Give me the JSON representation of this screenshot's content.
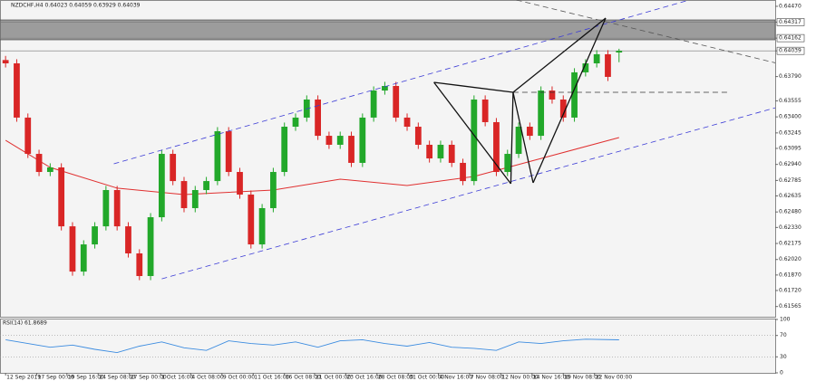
{
  "chart_data": {
    "type": "candlestick",
    "title": "NZDCHF,H4  0.64023 0.64059 0.63929 0.64039",
    "up_color": "#22a82a",
    "down_color": "#d92626",
    "xlim": [
      -0.5,
      69
    ],
    "ylim": [
      0.61466,
      0.64531
    ],
    "open": [
      0.6395,
      0.63918,
      0.63393,
      0.63042,
      0.62867,
      0.62911,
      0.62341,
      0.61903,
      0.62166,
      0.62341,
      0.62692,
      0.62341,
      0.62079,
      0.6186,
      0.62429,
      0.63042,
      0.62779,
      0.62517,
      0.62692,
      0.62779,
      0.63261,
      0.62867,
      0.62648,
      0.62166,
      0.62517,
      0.62867,
      0.63305,
      0.63393,
      0.63568,
      0.63217,
      0.6313,
      0.63217,
      0.62955,
      0.63393,
      0.63655,
      0.63699,
      0.63393,
      0.63305,
      0.6313,
      0.62998,
      0.6313,
      0.62955,
      0.62779,
      0.63568,
      0.63349,
      0.62867,
      0.63042,
      0.63305,
      0.63217,
      0.63655,
      0.63568,
      0.63393,
      0.63831,
      0.63918,
      0.64006,
      0.64023
    ],
    "high": [
      0.6399,
      0.63958,
      0.63433,
      0.63082,
      0.62951,
      0.62951,
      0.62381,
      0.62206,
      0.62381,
      0.62732,
      0.62732,
      0.62381,
      0.62119,
      0.62469,
      0.63082,
      0.63082,
      0.62819,
      0.62732,
      0.62819,
      0.63301,
      0.63301,
      0.62907,
      0.62688,
      0.62557,
      0.62907,
      0.63345,
      0.63433,
      0.63608,
      0.63608,
      0.63257,
      0.63257,
      0.63257,
      0.63433,
      0.63695,
      0.63739,
      0.63739,
      0.63433,
      0.63345,
      0.6317,
      0.6317,
      0.6317,
      0.62995,
      0.63608,
      0.63608,
      0.63389,
      0.63082,
      0.63345,
      0.63345,
      0.63695,
      0.63695,
      0.63608,
      0.63871,
      0.63958,
      0.64046,
      0.64046,
      0.64059
    ],
    "low": [
      0.63878,
      0.63353,
      0.63002,
      0.62827,
      0.62827,
      0.62301,
      0.61863,
      0.61863,
      0.62126,
      0.62301,
      0.62301,
      0.62039,
      0.6182,
      0.6182,
      0.62389,
      0.62739,
      0.62477,
      0.62477,
      0.62652,
      0.62739,
      0.62827,
      0.62608,
      0.62126,
      0.62126,
      0.62477,
      0.62827,
      0.63265,
      0.63353,
      0.63177,
      0.6309,
      0.6309,
      0.62915,
      0.62915,
      0.63353,
      0.63615,
      0.63353,
      0.63265,
      0.6309,
      0.62958,
      0.62958,
      0.62915,
      0.62739,
      0.62739,
      0.63309,
      0.62827,
      0.62827,
      0.63002,
      0.63177,
      0.63177,
      0.63528,
      0.63353,
      0.63353,
      0.63791,
      0.63878,
      0.63747,
      0.63929
    ],
    "close": [
      0.63918,
      0.63393,
      0.63042,
      0.62867,
      0.62911,
      0.62341,
      0.61903,
      0.62166,
      0.62341,
      0.62692,
      0.62341,
      0.62079,
      0.6186,
      0.62429,
      0.63042,
      0.62779,
      0.62517,
      0.62692,
      0.62779,
      0.63261,
      0.62867,
      0.62648,
      0.62166,
      0.62517,
      0.62867,
      0.63305,
      0.63393,
      0.63568,
      0.63217,
      0.6313,
      0.63217,
      0.62955,
      0.63393,
      0.63655,
      0.63699,
      0.63393,
      0.63305,
      0.6313,
      0.62998,
      0.6313,
      0.62955,
      0.62779,
      0.63568,
      0.63349,
      0.62867,
      0.63042,
      0.63305,
      0.63217,
      0.63655,
      0.63568,
      0.63393,
      0.63831,
      0.63918,
      0.64006,
      0.63787,
      0.64039
    ],
    "ma": {
      "color": "#e03030",
      "x": [
        0,
        4,
        10,
        16,
        24,
        30,
        36,
        42,
        48,
        55
      ],
      "values": [
        0.63173,
        0.62911,
        0.6271,
        0.62648,
        0.62692,
        0.62797,
        0.62736,
        0.62823,
        0.62998,
        0.632
      ]
    },
    "zone": {
      "color": "#8c8c8c",
      "range": [
        0.64146,
        0.64338
      ]
    },
    "lines": [
      {
        "color": "#3b3bd6",
        "dash": true,
        "x": [
          9.7,
          61.3
        ],
        "y": [
          0.62946,
          0.64531
        ]
      },
      {
        "color": "#3b3bd6",
        "dash": true,
        "x": [
          14.0,
          70.2
        ],
        "y": [
          0.61833,
          0.63524
        ]
      },
      {
        "color": "#555555",
        "dash": true,
        "x": [
          45.8,
          70.2
        ],
        "y": [
          0.64531,
          0.63892
        ]
      },
      {
        "color": "#333333",
        "dash": true,
        "x": [
          45.5,
          64.9
        ],
        "y": [
          0.63638,
          0.63638
        ]
      },
      {
        "color": "#111111",
        "dash": false,
        "x": [
          38.4,
          45.3
        ],
        "y": [
          0.63734,
          0.62753
        ]
      },
      {
        "color": "#111111",
        "dash": false,
        "x": [
          38.4,
          45.5
        ],
        "y": [
          0.63734,
          0.63638
        ]
      },
      {
        "color": "#111111",
        "dash": false,
        "x": [
          45.3,
          45.5
        ],
        "y": [
          0.62753,
          0.63638
        ]
      },
      {
        "color": "#111111",
        "dash": false,
        "x": [
          45.5,
          47.3
        ],
        "y": [
          0.63638,
          0.62762
        ]
      },
      {
        "color": "#111111",
        "dash": false,
        "x": [
          45.5,
          53.8
        ],
        "y": [
          0.63638,
          0.64356
        ]
      },
      {
        "color": "#111111",
        "dash": false,
        "x": [
          47.3,
          53.8
        ],
        "y": [
          0.62762,
          0.64356
        ]
      }
    ],
    "yticks": [
      {
        "value": 0.6447,
        "label": "0.64470"
      },
      {
        "value": 0.64317,
        "label": "0.64317"
      },
      {
        "value": 0.64162,
        "label": "0.64162"
      },
      {
        "value": 0.64039,
        "label": "0.64039"
      },
      {
        "value": 0.6379,
        "label": "0.63790"
      },
      {
        "value": 0.63555,
        "label": "0.63555"
      },
      {
        "value": 0.634,
        "label": "0.63400"
      },
      {
        "value": 0.63245,
        "label": "0.63245"
      },
      {
        "value": 0.63095,
        "label": "0.63095"
      },
      {
        "value": 0.6294,
        "label": "0.62940"
      },
      {
        "value": 0.62785,
        "label": "0.62785"
      },
      {
        "value": 0.62635,
        "label": "0.62635"
      },
      {
        "value": 0.6248,
        "label": "0.62480"
      },
      {
        "value": 0.6233,
        "label": "0.62330"
      },
      {
        "value": 0.62175,
        "label": "0.62175"
      },
      {
        "value": 0.6202,
        "label": "0.62020"
      },
      {
        "value": 0.6187,
        "label": "0.61870"
      },
      {
        "value": 0.6172,
        "label": "0.61720"
      },
      {
        "value": 0.61565,
        "label": "0.61565"
      }
    ],
    "boxed_ticks": [
      1,
      2,
      3
    ],
    "xticks": [
      {
        "value": 0,
        "label": "12 Sep 2019"
      },
      {
        "value": 2.8,
        "label": "17 Sep 00:00"
      },
      {
        "value": 5.5,
        "label": "19 Sep 16:00"
      },
      {
        "value": 8.3,
        "label": "24 Sep 08:00"
      },
      {
        "value": 11.1,
        "label": "27 Sep 00:00"
      },
      {
        "value": 13.9,
        "label": "1 Oct 16:00"
      },
      {
        "value": 16.6,
        "label": "4 Oct 08:00"
      },
      {
        "value": 19.4,
        "label": "9 Oct 00:00"
      },
      {
        "value": 22.2,
        "label": "11 Oct 16:00"
      },
      {
        "value": 25,
        "label": "16 Oct 08:00"
      },
      {
        "value": 27.7,
        "label": "21 Oct 00:00"
      },
      {
        "value": 30.5,
        "label": "23 Oct 16:00"
      },
      {
        "value": 33.3,
        "label": "28 Oct 08:00"
      },
      {
        "value": 36.1,
        "label": "31 Oct 00:00"
      },
      {
        "value": 38.8,
        "label": "4 Nov 16:00"
      },
      {
        "value": 41.6,
        "label": "7 Nov 08:00"
      },
      {
        "value": 44.4,
        "label": "12 Nov 00:00"
      },
      {
        "value": 47.2,
        "label": "14 Nov 16:00"
      },
      {
        "value": 50,
        "label": "19 Nov 08:00"
      },
      {
        "value": 52.8,
        "label": "22 Nov 00:00"
      }
    ],
    "rsi": {
      "label": "RSI(14) 61.8689",
      "color": "#3c8ce0",
      "ylim": [
        0,
        100
      ],
      "yticks": [
        100,
        70,
        30,
        0
      ],
      "levels": [
        70,
        30
      ],
      "x": [
        0,
        2,
        4,
        6,
        8,
        10,
        12,
        14,
        16,
        18,
        20,
        22,
        24,
        26,
        28,
        30,
        32,
        34,
        36,
        38,
        40,
        42,
        44,
        46,
        48,
        50,
        52,
        55
      ],
      "values": [
        62,
        55,
        48,
        52,
        44,
        38,
        50,
        58,
        47,
        42,
        60,
        55,
        52,
        58,
        48,
        60,
        62,
        55,
        50,
        57,
        48,
        46,
        42,
        58,
        55,
        60,
        63,
        61.8689
      ]
    }
  }
}
